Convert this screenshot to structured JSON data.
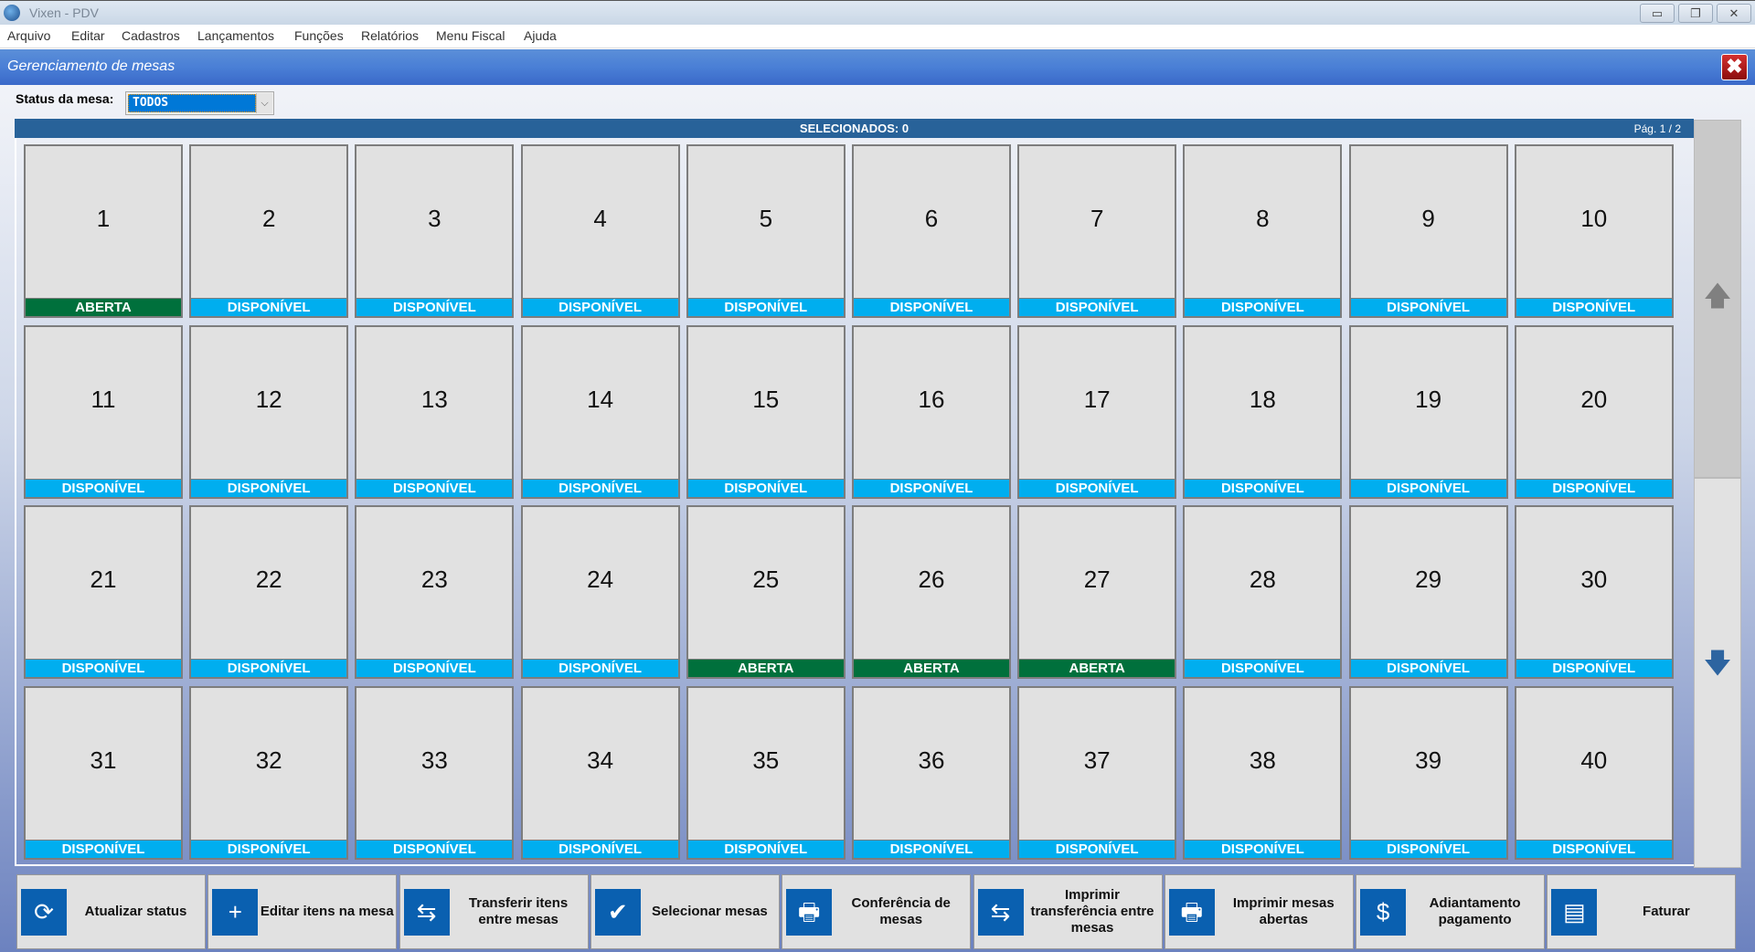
{
  "window": {
    "title": "Vixen - PDV",
    "minimize": "▭",
    "restore": "❐",
    "close": "✕"
  },
  "menu": [
    "Arquivo",
    "Editar",
    "Cadastros",
    "Lançamentos",
    "Funções",
    "Relatórios",
    "Menu Fiscal",
    "Ajuda"
  ],
  "panel": {
    "title": "Gerenciamento de mesas",
    "close": "✖"
  },
  "filter": {
    "label": "Status da mesa:",
    "value": "TODOS",
    "arrow": "⌵"
  },
  "selection": {
    "label": "SELECIONADOS: 0",
    "page": "Pág. 1 / 2"
  },
  "colors": {
    "aberta": "#00703c",
    "disponivel": "#00aeef"
  },
  "tables": [
    {
      "n": "1",
      "s": "ABERTA"
    },
    {
      "n": "2",
      "s": "DISPONÍVEL"
    },
    {
      "n": "3",
      "s": "DISPONÍVEL"
    },
    {
      "n": "4",
      "s": "DISPONÍVEL"
    },
    {
      "n": "5",
      "s": "DISPONÍVEL"
    },
    {
      "n": "6",
      "s": "DISPONÍVEL"
    },
    {
      "n": "7",
      "s": "DISPONÍVEL"
    },
    {
      "n": "8",
      "s": "DISPONÍVEL"
    },
    {
      "n": "9",
      "s": "DISPONÍVEL"
    },
    {
      "n": "10",
      "s": "DISPONÍVEL"
    },
    {
      "n": "11",
      "s": "DISPONÍVEL"
    },
    {
      "n": "12",
      "s": "DISPONÍVEL"
    },
    {
      "n": "13",
      "s": "DISPONÍVEL"
    },
    {
      "n": "14",
      "s": "DISPONÍVEL"
    },
    {
      "n": "15",
      "s": "DISPONÍVEL"
    },
    {
      "n": "16",
      "s": "DISPONÍVEL"
    },
    {
      "n": "17",
      "s": "DISPONÍVEL"
    },
    {
      "n": "18",
      "s": "DISPONÍVEL"
    },
    {
      "n": "19",
      "s": "DISPONÍVEL"
    },
    {
      "n": "20",
      "s": "DISPONÍVEL"
    },
    {
      "n": "21",
      "s": "DISPONÍVEL"
    },
    {
      "n": "22",
      "s": "DISPONÍVEL"
    },
    {
      "n": "23",
      "s": "DISPONÍVEL"
    },
    {
      "n": "24",
      "s": "DISPONÍVEL"
    },
    {
      "n": "25",
      "s": "ABERTA"
    },
    {
      "n": "26",
      "s": "ABERTA"
    },
    {
      "n": "27",
      "s": "ABERTA"
    },
    {
      "n": "28",
      "s": "DISPONÍVEL"
    },
    {
      "n": "29",
      "s": "DISPONÍVEL"
    },
    {
      "n": "30",
      "s": "DISPONÍVEL"
    },
    {
      "n": "31",
      "s": "DISPONÍVEL"
    },
    {
      "n": "32",
      "s": "DISPONÍVEL"
    },
    {
      "n": "33",
      "s": "DISPONÍVEL"
    },
    {
      "n": "34",
      "s": "DISPONÍVEL"
    },
    {
      "n": "35",
      "s": "DISPONÍVEL"
    },
    {
      "n": "36",
      "s": "DISPONÍVEL"
    },
    {
      "n": "37",
      "s": "DISPONÍVEL"
    },
    {
      "n": "38",
      "s": "DISPONÍVEL"
    },
    {
      "n": "39",
      "s": "DISPONÍVEL"
    },
    {
      "n": "40",
      "s": "DISPONÍVEL"
    }
  ],
  "scroll": {
    "up": "🡅",
    "down": "🡇"
  },
  "actions": [
    {
      "label": "Atualizar status",
      "icon": "refresh-icon",
      "glyph": "⟳"
    },
    {
      "label": "Editar itens na mesa",
      "icon": "document-add-icon",
      "glyph": "+"
    },
    {
      "label": "Transferir itens entre mesas",
      "icon": "document-transfer-icon",
      "glyph": "⇆"
    },
    {
      "label": "Selecionar mesas",
      "icon": "checkbox-icon",
      "glyph": "✔"
    },
    {
      "label": "Conferência de mesas",
      "icon": "printer-list-icon",
      "glyph": "🖶"
    },
    {
      "label": "Imprimir transferência entre mesas",
      "icon": "printer-transfer-icon",
      "glyph": "⇆"
    },
    {
      "label": "Imprimir mesas abertas",
      "icon": "printer-lock-icon",
      "glyph": "🖶"
    },
    {
      "label": "Adiantamento pagamento",
      "icon": "hand-money-icon",
      "glyph": "$"
    },
    {
      "label": "Faturar",
      "icon": "invoice-icon",
      "glyph": "▤"
    }
  ]
}
